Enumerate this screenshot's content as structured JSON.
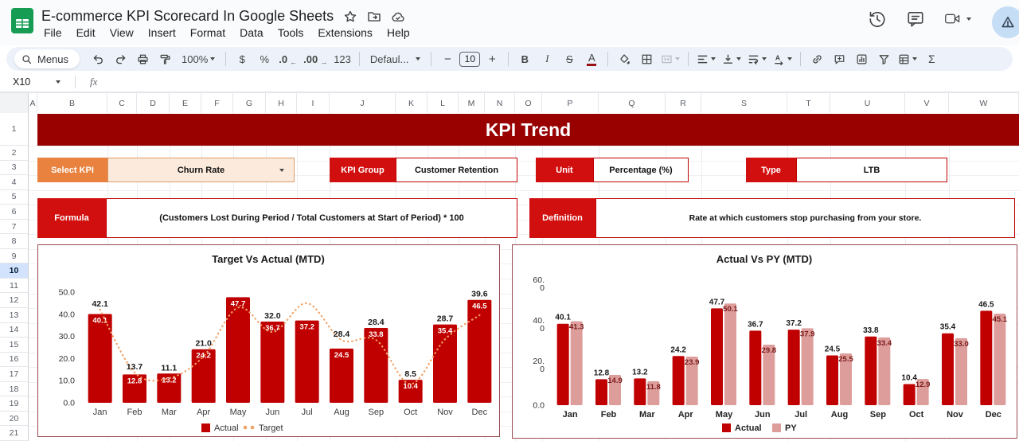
{
  "titlebar": {
    "title": "E-commerce KPI Scorecard In Google Sheets",
    "menus": [
      "File",
      "Edit",
      "View",
      "Insert",
      "Format",
      "Data",
      "Tools",
      "Extensions",
      "Help"
    ]
  },
  "toolbar": {
    "search_label": "Menus",
    "zoom": "100%",
    "currency": "$",
    "percent": "%",
    "decimal_decrease": ".0",
    "decimal_increase": ".00",
    "more_formats": "123",
    "font_name": "Defaul...",
    "minus": "−",
    "font_size": "10",
    "plus": "+",
    "bold": "B",
    "italic": "I",
    "strikethrough": "S",
    "text_color": "A",
    "functions": "Σ"
  },
  "formula_bar": {
    "cell_ref": "X10",
    "fx_label": "fx"
  },
  "grid": {
    "columns": [
      "A",
      "B",
      "C",
      "D",
      "E",
      "F",
      "G",
      "H",
      "I",
      "J",
      "K",
      "L",
      "M",
      "N",
      "O",
      "P",
      "Q",
      "R",
      "S",
      "T",
      "U",
      "V",
      "W"
    ],
    "rows": [
      "1",
      "2",
      "3",
      "4",
      "5",
      "6",
      "7",
      "8",
      "9",
      "10",
      "11",
      "12",
      "13",
      "14",
      "15",
      "16",
      "17",
      "18",
      "19",
      "20",
      "21"
    ],
    "selected_row": "10"
  },
  "dashboard": {
    "banner": "KPI Trend",
    "select_kpi": {
      "label": "Select KPI",
      "value": "Churn Rate"
    },
    "kpi_group": {
      "label": "KPI Group",
      "value": "Customer Retention"
    },
    "unit": {
      "label": "Unit",
      "value": "Percentage (%)"
    },
    "type": {
      "label": "Type",
      "value": "LTB"
    },
    "formula": {
      "label": "Formula",
      "value": "(Customers Lost During Period / Total Customers at Start of Period) * 100"
    },
    "definition": {
      "label": "Definition",
      "value": "Rate at which customers stop purchasing from your store."
    }
  },
  "colors": {
    "banner_red": "#990000",
    "label_red": "#d20f0f",
    "select_orange": "#e8823e",
    "bar_red": "#c00000",
    "py_pink": "#dd9d9b",
    "target_orange": "#f0a165",
    "chart_border": "#9a4a4e",
    "selected_row_blue": "#d3e3fd"
  },
  "chart_data": [
    {
      "type": "bar",
      "title": "Target Vs Actual (MTD)",
      "categories": [
        "Jan",
        "Feb",
        "Mar",
        "Apr",
        "May",
        "Jun",
        "Jul",
        "Aug",
        "Sep",
        "Oct",
        "Nov",
        "Dec"
      ],
      "series": [
        {
          "name": "Actual",
          "type": "bar",
          "color": "#c00000",
          "values": [
            40.1,
            12.8,
            13.2,
            24.2,
            47.7,
            36.7,
            37.2,
            24.5,
            33.8,
            10.4,
            35.4,
            46.5
          ]
        },
        {
          "name": "Target",
          "type": "dotted-line",
          "color": "#f0a165",
          "values": [
            42.1,
            13.7,
            11.1,
            21.0,
            43.0,
            32.0,
            45.0,
            28.4,
            28.4,
            8.5,
            28.7,
            39.6
          ],
          "labels": [
            "42.1",
            "13.7",
            "11.1",
            "21.0",
            "",
            "32.0",
            "",
            "28.4",
            "28.4",
            "8.5",
            "28.7",
            "39.6"
          ],
          "unlabeled_points_estimated": [
            4,
            6
          ]
        }
      ],
      "yticks": [
        "50.0",
        "40.0",
        "30.0",
        "20.0",
        "10.0",
        "0.0"
      ],
      "ylim": [
        0,
        50
      ],
      "grid": false,
      "legend_position": "bottom"
    },
    {
      "type": "grouped-bar",
      "title": "Actual Vs PY (MTD)",
      "categories": [
        "Jan",
        "Feb",
        "Mar",
        "Apr",
        "May",
        "Jun",
        "Jul",
        "Aug",
        "Sep",
        "Oct",
        "Nov",
        "Dec"
      ],
      "series": [
        {
          "name": "Actual",
          "color": "#c00000",
          "values": [
            40.1,
            12.8,
            13.2,
            24.2,
            47.7,
            36.7,
            37.2,
            24.5,
            33.8,
            10.4,
            35.4,
            46.5
          ]
        },
        {
          "name": "PY",
          "color": "#dd9d9b",
          "values": [
            41.3,
            14.9,
            11.8,
            23.9,
            50.1,
            29.8,
            37.9,
            25.5,
            33.4,
            12.9,
            33.0,
            45.1
          ]
        }
      ],
      "yticks": [
        "60.0",
        "40.0",
        "20.0",
        "0.0"
      ],
      "ylim": [
        0,
        60
      ],
      "grid": false,
      "legend_position": "bottom"
    }
  ]
}
